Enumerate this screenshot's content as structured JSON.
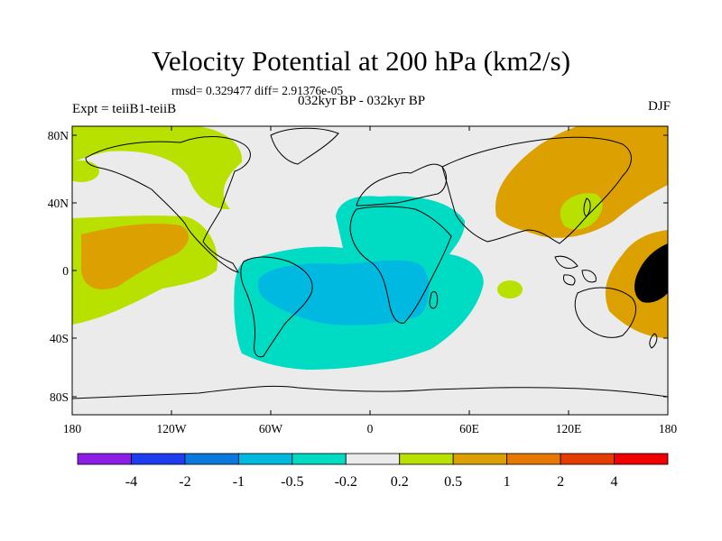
{
  "title": "Velocity Potential at 200 hPa (km2/s)",
  "stats": "rmsd= 0.329477 diff= 2.91376e-05",
  "experiment": "Expt = teiiB1-teiiB",
  "period": "032kyr BP - 032kyr BP",
  "season": "DJF",
  "map": {
    "lon_ticks": [
      "180",
      "120W",
      "60W",
      "0",
      "60E",
      "120E",
      "180"
    ],
    "lat_ticks": [
      "80N",
      "40N",
      "0",
      "40S",
      "80S"
    ],
    "background_color": "#ebebeb",
    "regions": [
      {
        "name": "negative-atlantic-outer",
        "color": "#00dcc3"
      },
      {
        "name": "negative-atlantic-inner",
        "color": "#00b9e1"
      },
      {
        "name": "positive-pacific-east",
        "color": "#b9e100"
      },
      {
        "name": "positive-pacific-east-core",
        "color": "#dca000"
      },
      {
        "name": "positive-eurasia",
        "color": "#b9e100"
      },
      {
        "name": "positive-japan-core",
        "color": "#dca000"
      },
      {
        "name": "positive-west-pacific",
        "color": "#b9e100"
      },
      {
        "name": "positive-west-pacific-core",
        "color": "#dca000"
      }
    ]
  },
  "colorbar": {
    "colors": [
      "#8c1ee6",
      "#1e3cf0",
      "#0a78dc",
      "#00b9e1",
      "#00dcc3",
      "#ebebeb",
      "#b9e100",
      "#dca000",
      "#e67800",
      "#e63c00",
      "#f00000"
    ],
    "labels": [
      "-4",
      "-2",
      "-1",
      "-0.5",
      "-0.2",
      "0.2",
      "0.5",
      "1",
      "2",
      "4"
    ]
  }
}
